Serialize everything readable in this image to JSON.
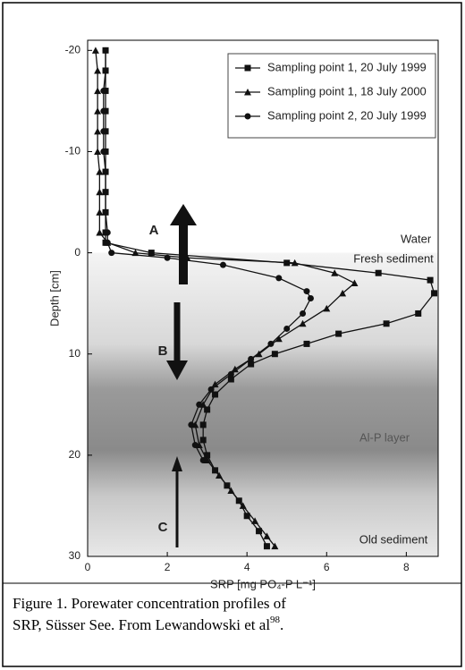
{
  "chart_data": {
    "type": "line",
    "xlabel": "SRP [mg PO₄-P L⁻¹]",
    "ylabel": "Depth [cm]",
    "xlim": [
      0,
      8.8
    ],
    "xticks": [
      0,
      2,
      4,
      6,
      8
    ],
    "ylim": [
      -21,
      30
    ],
    "yticks": [
      -20,
      -10,
      0,
      10,
      20,
      30
    ],
    "y_inverted": true,
    "legend": "upper right",
    "series": [
      {
        "name": "Sampling point 1, 20 July 1999",
        "color": "#111",
        "marker": "square",
        "depth": [
          -20,
          -18,
          -16,
          -14,
          -12,
          -10,
          -8,
          -6,
          -4,
          -2,
          -1,
          0,
          1,
          2,
          2.7,
          4,
          6,
          7,
          8,
          9,
          10,
          11,
          12.5,
          14,
          15.5,
          17,
          18.5,
          20,
          21.5,
          23,
          24.5,
          26,
          27.5,
          29
        ],
        "values": [
          0.45,
          0.45,
          0.45,
          0.45,
          0.45,
          0.45,
          0.45,
          0.45,
          0.45,
          0.45,
          0.45,
          1.6,
          5.0,
          7.3,
          8.6,
          8.7,
          8.3,
          7.5,
          6.3,
          5.5,
          4.7,
          4.1,
          3.6,
          3.2,
          3.0,
          2.9,
          2.9,
          3.0,
          3.2,
          3.5,
          3.8,
          4.0,
          4.3,
          4.5
        ]
      },
      {
        "name": "Sampling point 1, 18 July 2000",
        "color": "#111",
        "marker": "triangle",
        "depth": [
          -20,
          -18,
          -16,
          -14,
          -12,
          -10,
          -8,
          -6,
          -4,
          -2,
          -1,
          0,
          0.5,
          1,
          2,
          3,
          4,
          5.5,
          7,
          8.5,
          10,
          11.5,
          13,
          15,
          17,
          19,
          20.5,
          22,
          23.5,
          25,
          26.5,
          28,
          29
        ],
        "values": [
          0.2,
          0.25,
          0.25,
          0.25,
          0.25,
          0.25,
          0.3,
          0.3,
          0.3,
          0.3,
          0.5,
          1.2,
          2.5,
          5.2,
          6.2,
          6.7,
          6.4,
          6.0,
          5.4,
          4.8,
          4.3,
          3.7,
          3.2,
          2.9,
          2.7,
          2.8,
          3.0,
          3.3,
          3.6,
          3.9,
          4.2,
          4.5,
          4.7
        ]
      },
      {
        "name": "Sampling point 2, 20 July 1999",
        "color": "#111",
        "marker": "circle",
        "depth": [
          -20,
          -18,
          -16,
          -14,
          -12,
          -10,
          -8,
          -6,
          -4,
          -2,
          -1,
          0,
          0.5,
          1.2,
          2.5,
          3.8,
          4.5,
          6,
          7.5,
          9,
          10.5,
          12,
          13.5,
          15,
          17,
          19,
          20.5
        ],
        "values": [
          0.45,
          0.45,
          0.4,
          0.4,
          0.4,
          0.4,
          0.45,
          0.45,
          0.45,
          0.5,
          0.5,
          0.6,
          2.0,
          3.4,
          4.8,
          5.5,
          5.6,
          5.4,
          5.0,
          4.6,
          4.1,
          3.6,
          3.1,
          2.8,
          2.6,
          2.7,
          2.9
        ]
      }
    ],
    "annotations": [
      "Water",
      "Fresh sediment",
      "Al-P layer",
      "Old sediment",
      "A",
      "B",
      "C"
    ]
  },
  "caption": {
    "lines": [
      "Figure 1.  Porewater concentration profiles of",
      "SRP, Süsser See.  From Lewandowski et al"
    ],
    "ref": "98",
    "end": "."
  }
}
